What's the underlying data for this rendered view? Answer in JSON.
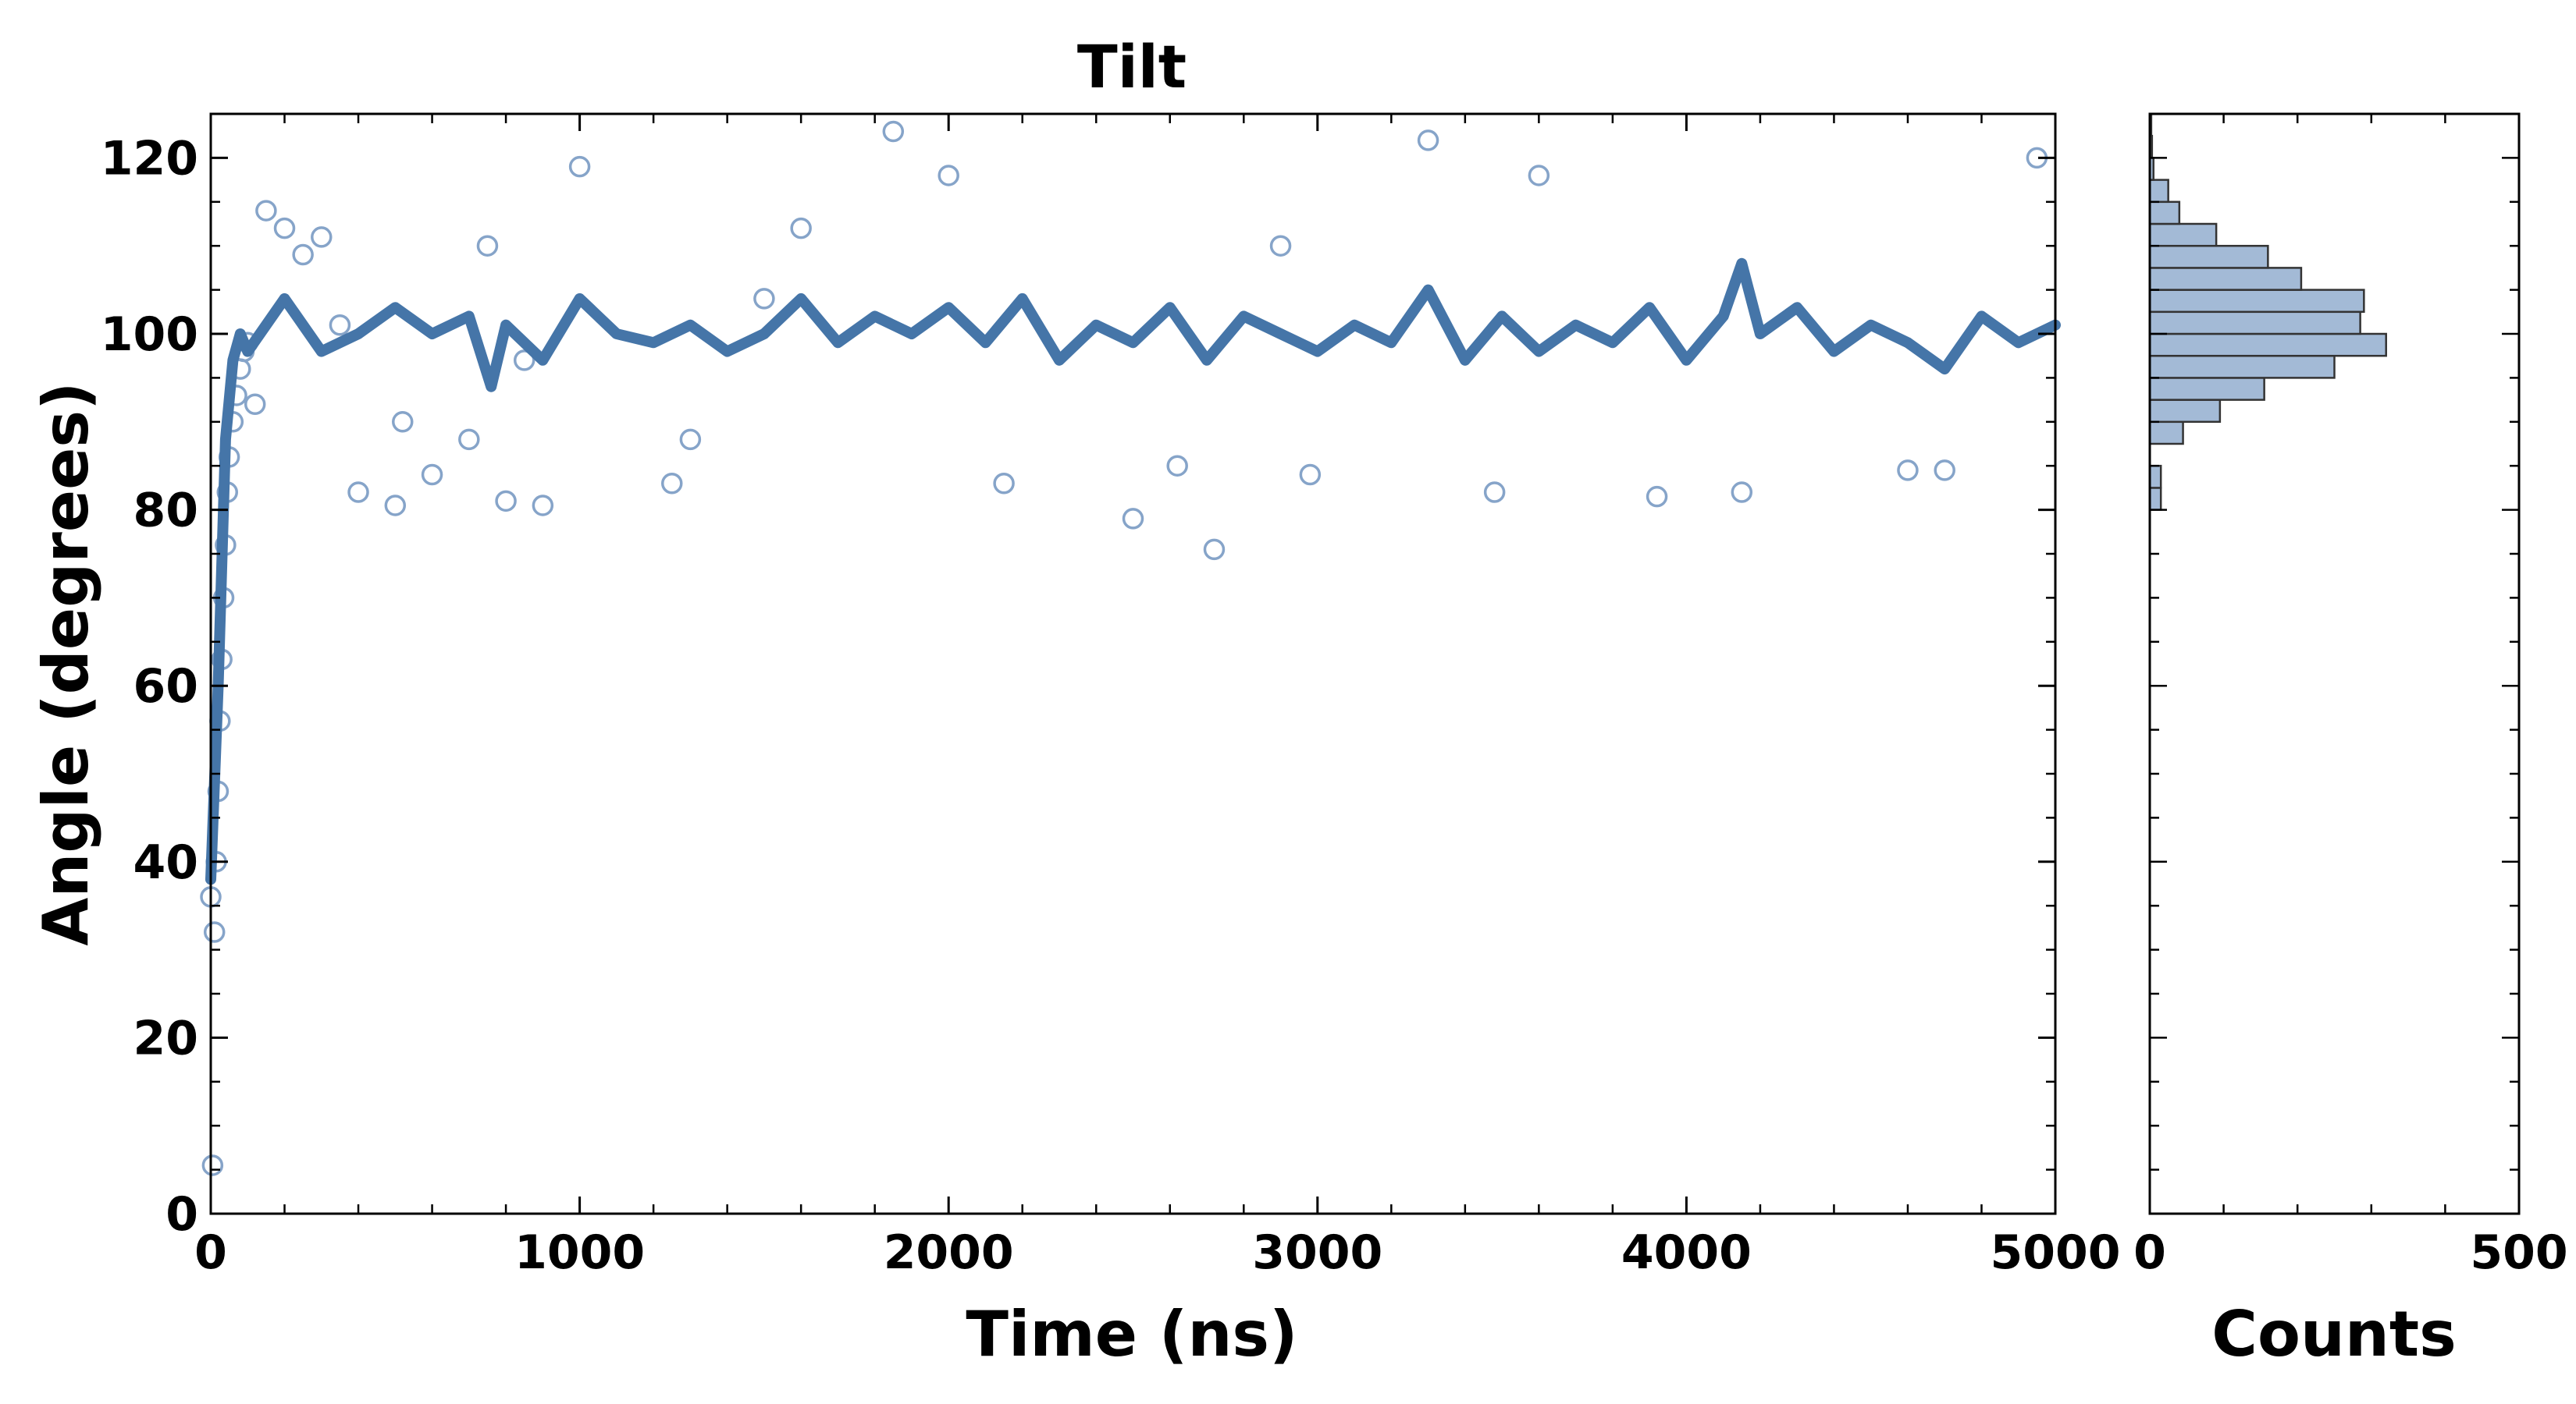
{
  "chart_data": [
    {
      "type": "scatter",
      "title": "Tilt",
      "xlabel": "Time (ns)",
      "ylabel": "Angle (degrees)",
      "xlim": [
        0,
        5000
      ],
      "ylim": [
        0,
        125
      ],
      "xticks": [
        0,
        1000,
        2000,
        3000,
        4000,
        5000
      ],
      "yticks": [
        0,
        20,
        40,
        60,
        80,
        100,
        120
      ],
      "grid": false,
      "marker_color": "#86a4c9",
      "line_color": "#4575a8",
      "series": [
        {
          "style": "open-circle markers",
          "description_of_values": "per-frame tilt angle samples",
          "x": [
            0,
            5,
            10,
            15,
            20,
            25,
            30,
            35,
            40,
            45,
            50,
            60,
            70,
            80,
            90,
            100,
            120,
            150,
            200,
            250,
            300,
            350,
            400,
            500,
            520,
            600,
            700,
            750,
            800,
            850,
            900,
            1000,
            1250,
            1300,
            1500,
            1600,
            1850,
            2000,
            2150,
            2500,
            2620,
            2720,
            2900,
            2980,
            3300,
            3480,
            3600,
            3920,
            4150,
            4600,
            4700,
            4950
          ],
          "y": [
            36,
            5.5,
            32,
            40,
            48,
            56,
            63,
            70,
            76,
            82,
            86,
            90,
            93,
            96,
            98,
            99,
            92,
            114,
            112,
            109,
            111,
            101,
            82,
            80.5,
            90,
            84,
            88,
            110,
            81,
            97,
            80.5,
            119,
            83,
            88,
            104,
            112,
            123,
            118,
            83,
            79,
            85,
            75.5,
            110,
            84,
            122,
            82,
            118,
            81.5,
            82,
            84.5,
            84.5,
            120
          ]
        },
        {
          "style": "thick line",
          "description_of_values": "running average of tilt angle",
          "x": [
            0,
            20,
            40,
            60,
            80,
            100,
            150,
            200,
            300,
            400,
            500,
            600,
            700,
            760,
            800,
            900,
            1000,
            1100,
            1200,
            1300,
            1400,
            1500,
            1600,
            1700,
            1800,
            1900,
            2000,
            2100,
            2200,
            2300,
            2400,
            2500,
            2600,
            2700,
            2800,
            2900,
            3000,
            3100,
            3200,
            3300,
            3400,
            3500,
            3600,
            3700,
            3800,
            3900,
            4000,
            4100,
            4150,
            4200,
            4300,
            4400,
            4500,
            4600,
            4700,
            4800,
            4900,
            5000
          ],
          "y": [
            38,
            60,
            88,
            97,
            100,
            98,
            101,
            104,
            98,
            100,
            103,
            100,
            102,
            94,
            101,
            97,
            104,
            100,
            99,
            101,
            98,
            100,
            104,
            99,
            102,
            100,
            103,
            99,
            104,
            97,
            101,
            99,
            103,
            97,
            102,
            100,
            98,
            101,
            99,
            105,
            97,
            102,
            98,
            101,
            99,
            103,
            97,
            102,
            108,
            100,
            103,
            98,
            101,
            99,
            96,
            102,
            99,
            101
          ]
        }
      ]
    },
    {
      "type": "bar",
      "orientation": "horizontal",
      "xlabel": "Counts",
      "ylabel": "",
      "xlim": [
        0,
        500
      ],
      "ylim": [
        0,
        125
      ],
      "xticks": [
        0,
        500
      ],
      "bar_color": "#a3bad6",
      "edge_color": "#333333",
      "bin_width": 2.5,
      "bin_starts": [
        80,
        82.5,
        85,
        87.5,
        90,
        92.5,
        95,
        97.5,
        100,
        102.5,
        105,
        107.5,
        110,
        112.5,
        115,
        117.5,
        120,
        122.5
      ],
      "values": [
        15,
        15,
        0,
        45,
        95,
        155,
        250,
        320,
        285,
        290,
        205,
        160,
        90,
        40,
        25,
        5,
        3,
        2
      ]
    }
  ]
}
